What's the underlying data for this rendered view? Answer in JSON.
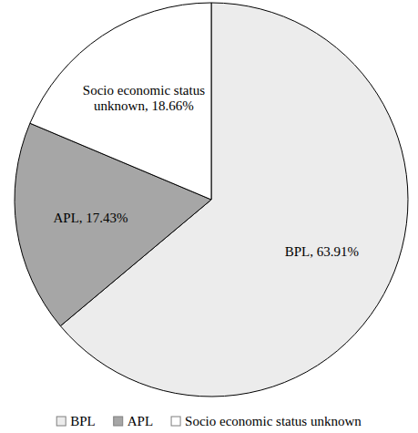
{
  "chart_data": {
    "type": "pie",
    "categories": [
      "BPL",
      "APL",
      "Socio economic status unknown"
    ],
    "values": [
      63.91,
      17.43,
      18.66
    ],
    "value_labels": [
      "BPL, 63.91%",
      "APL, 17.43%",
      "Socio economic status unknown, 18.66%"
    ],
    "colors": [
      "#ececec",
      "#a6a6a6",
      "#ffffff"
    ],
    "data_labels": true,
    "legend": "bottom"
  }
}
